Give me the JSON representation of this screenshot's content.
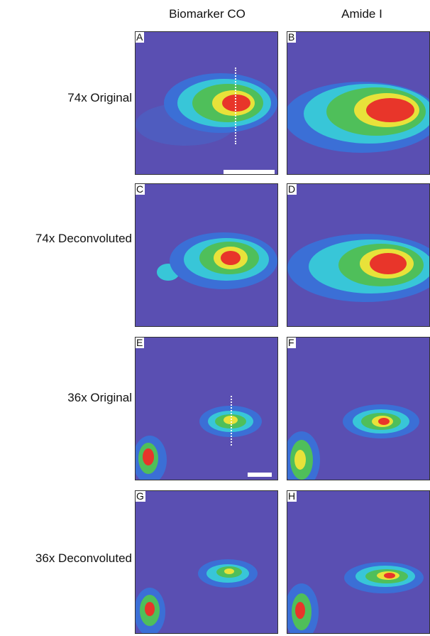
{
  "columns": {
    "left": "Biomarker CO",
    "right": "Amide I"
  },
  "rows": [
    {
      "label": "74x Original"
    },
    {
      "label": "74x Deconvoluted"
    },
    {
      "label": "36x Original"
    },
    {
      "label": "36x Deconvoluted"
    }
  ],
  "panels": {
    "A": "A",
    "B": "B",
    "C": "C",
    "D": "D",
    "E": "E",
    "F": "F",
    "G": "G",
    "H": "H"
  },
  "colors": {
    "background": "#5a4fb2",
    "blue": "#3b6fd6",
    "cyan": "#38c6d8",
    "green": "#4fbf5a",
    "yellow": "#e8e23a",
    "red": "#e8352a"
  }
}
